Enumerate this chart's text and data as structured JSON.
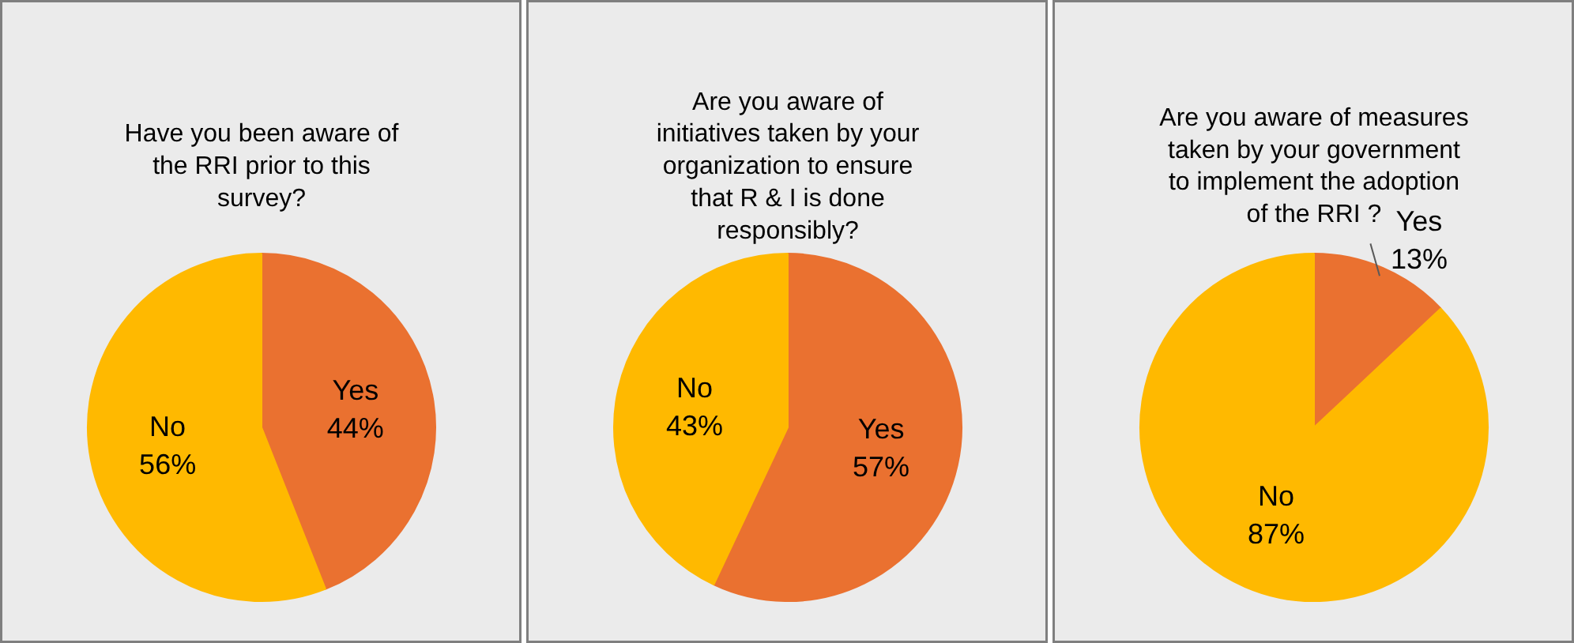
{
  "chart_data": [
    {
      "type": "pie",
      "title": "Have you been aware of the RRI prior to this survey?",
      "categories": [
        "Yes",
        "No"
      ],
      "values": [
        44,
        56
      ],
      "colors": [
        "#ea7130",
        "#ffb900"
      ],
      "value_labels": [
        "44%",
        "56%"
      ]
    },
    {
      "type": "pie",
      "title": "Are you aware of initiatives taken by your organization to ensure that R & I is done responsibly?",
      "categories": [
        "Yes",
        "No"
      ],
      "values": [
        57,
        43
      ],
      "colors": [
        "#ea7130",
        "#ffb900"
      ],
      "value_labels": [
        "57%",
        "43%"
      ]
    },
    {
      "type": "pie",
      "title": "Are you aware of measures taken by your government to implement the adoption of the RRI ?",
      "categories": [
        "Yes",
        "No"
      ],
      "values": [
        13,
        87
      ],
      "colors": [
        "#ea7130",
        "#ffb900"
      ],
      "value_labels": [
        "13%",
        "87%"
      ]
    }
  ]
}
